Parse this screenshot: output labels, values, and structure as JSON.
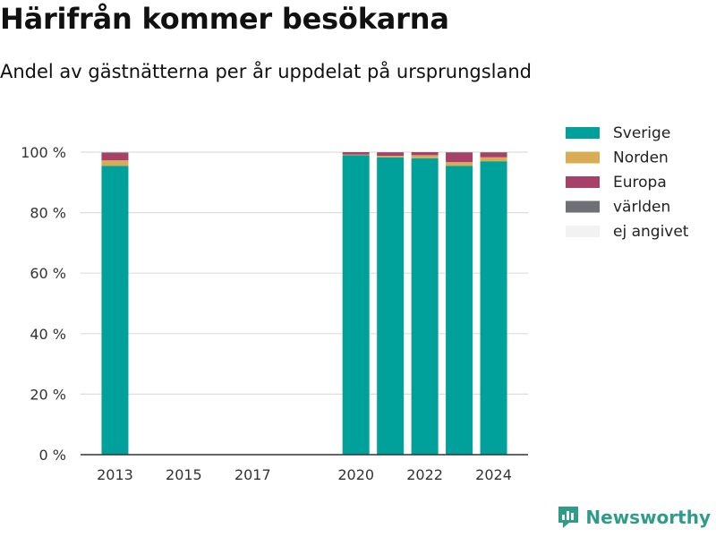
{
  "title": "Härifrån kommer besökarna",
  "subtitle": "Andel av gästnätterna per år uppdelat på ursprungsland",
  "brand": {
    "name": "Newsworthy",
    "icon": "newsworthy-logo-icon",
    "color": "#2f9c8a"
  },
  "chart_data": {
    "type": "bar",
    "stacked": true,
    "categories": [
      "2013",
      "2020",
      "2021",
      "2022",
      "2023",
      "2024"
    ],
    "x_positions": [
      2013,
      2020,
      2021,
      2022,
      2023,
      2024
    ],
    "x_ticks": [
      "2013",
      "2015",
      "2017",
      "2020",
      "2022",
      "2024"
    ],
    "y_ticks": [
      "0 %",
      "20 %",
      "40 %",
      "60 %",
      "80 %",
      "100 %"
    ],
    "ylim": [
      0,
      100
    ],
    "xlim": [
      2012,
      2025
    ],
    "grid": true,
    "legend_position": "right",
    "series": [
      {
        "name": "Sverige",
        "color": "#00a19a",
        "values": [
          95.5,
          99,
          98.3,
          98,
          95.5,
          97
        ]
      },
      {
        "name": "Norden",
        "color": "#d9ac54",
        "values": [
          1.8,
          0.2,
          0.5,
          1,
          1.2,
          1.3
        ]
      },
      {
        "name": "Europa",
        "color": "#a8416a",
        "values": [
          2.4,
          0.8,
          1.1,
          1,
          3.1,
          1.5
        ]
      },
      {
        "name": "världen",
        "color": "#6e7076",
        "values": [
          0.2,
          0,
          0.1,
          0,
          0.2,
          0.2
        ]
      },
      {
        "name": "ej angivet",
        "color": "#f2f2f2",
        "values": [
          0,
          0,
          0,
          0,
          0,
          0
        ]
      }
    ]
  }
}
